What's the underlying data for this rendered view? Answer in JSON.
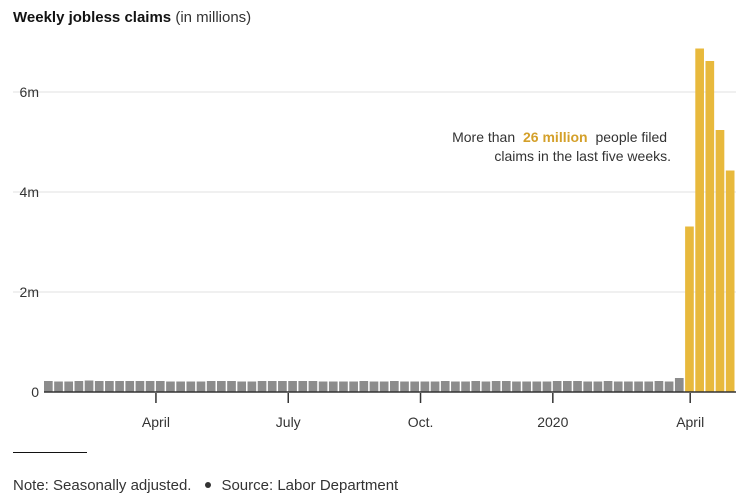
{
  "header": {
    "title_bold": "Weekly jobless claims",
    "title_light": "(in millions)"
  },
  "footer": {
    "note": "Note: Seasonally adjusted.",
    "source": "Source: Labor Department"
  },
  "colors": {
    "normal_bar": "#8c8c8c",
    "highlight_bar": "#e8b93c",
    "highlight_text": "#d4a02a",
    "grid": "#e2e2e2",
    "axis": "#333333"
  },
  "chart_data": {
    "type": "bar",
    "title": "Weekly jobless claims",
    "subtitle": "(in millions)",
    "xlabel": "",
    "ylabel": "",
    "ylim": [
      0,
      6.9
    ],
    "y_ticks": [
      0,
      2,
      4,
      6
    ],
    "y_tick_labels": [
      "0",
      "2m",
      "4m",
      "6m"
    ],
    "x_tick_labels": [
      {
        "label": "April",
        "index": 11
      },
      {
        "label": "July",
        "index": 24
      },
      {
        "label": "Oct.",
        "index": 37
      },
      {
        "label": "2020",
        "index": 50
      },
      {
        "label": "April",
        "index": 63.5
      }
    ],
    "highlight_start_index": 63,
    "values": [
      0.22,
      0.21,
      0.21,
      0.22,
      0.23,
      0.22,
      0.22,
      0.22,
      0.22,
      0.22,
      0.22,
      0.22,
      0.21,
      0.21,
      0.21,
      0.21,
      0.22,
      0.22,
      0.22,
      0.21,
      0.21,
      0.22,
      0.22,
      0.22,
      0.22,
      0.22,
      0.22,
      0.21,
      0.21,
      0.21,
      0.21,
      0.22,
      0.21,
      0.21,
      0.22,
      0.21,
      0.21,
      0.21,
      0.21,
      0.22,
      0.21,
      0.21,
      0.22,
      0.21,
      0.22,
      0.22,
      0.21,
      0.21,
      0.21,
      0.21,
      0.22,
      0.22,
      0.22,
      0.21,
      0.21,
      0.22,
      0.21,
      0.21,
      0.21,
      0.21,
      0.22,
      0.21,
      0.28,
      3.31,
      6.87,
      6.62,
      5.24,
      4.43
    ],
    "annotation": {
      "line1_pre": "More than",
      "line1_bold": "26 million",
      "line1_post": "people filed",
      "line2": "claims in the last five weeks."
    }
  }
}
